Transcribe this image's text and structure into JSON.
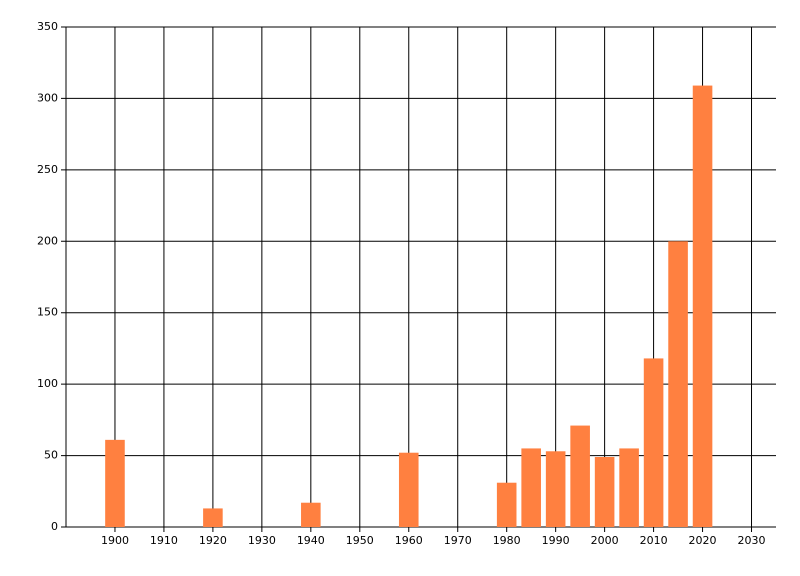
{
  "chart_data": {
    "type": "bar",
    "x": [
      1900,
      1920,
      1940,
      1960,
      1980,
      1985,
      1990,
      1995,
      2000,
      2005,
      2010,
      2015,
      2020
    ],
    "values": [
      61,
      13,
      17,
      52,
      31,
      55,
      53,
      71,
      49,
      55,
      118,
      200,
      309
    ],
    "color": "#ff8040",
    "xlim": [
      1890,
      2035
    ],
    "xticks": [
      1900,
      1910,
      1920,
      1930,
      1940,
      1950,
      1960,
      1970,
      1980,
      1990,
      2000,
      2010,
      2020,
      2030
    ],
    "ylim": [
      0,
      350
    ],
    "yticks": [
      0,
      50,
      100,
      150,
      200,
      250,
      300,
      350
    ],
    "grid": true
  }
}
